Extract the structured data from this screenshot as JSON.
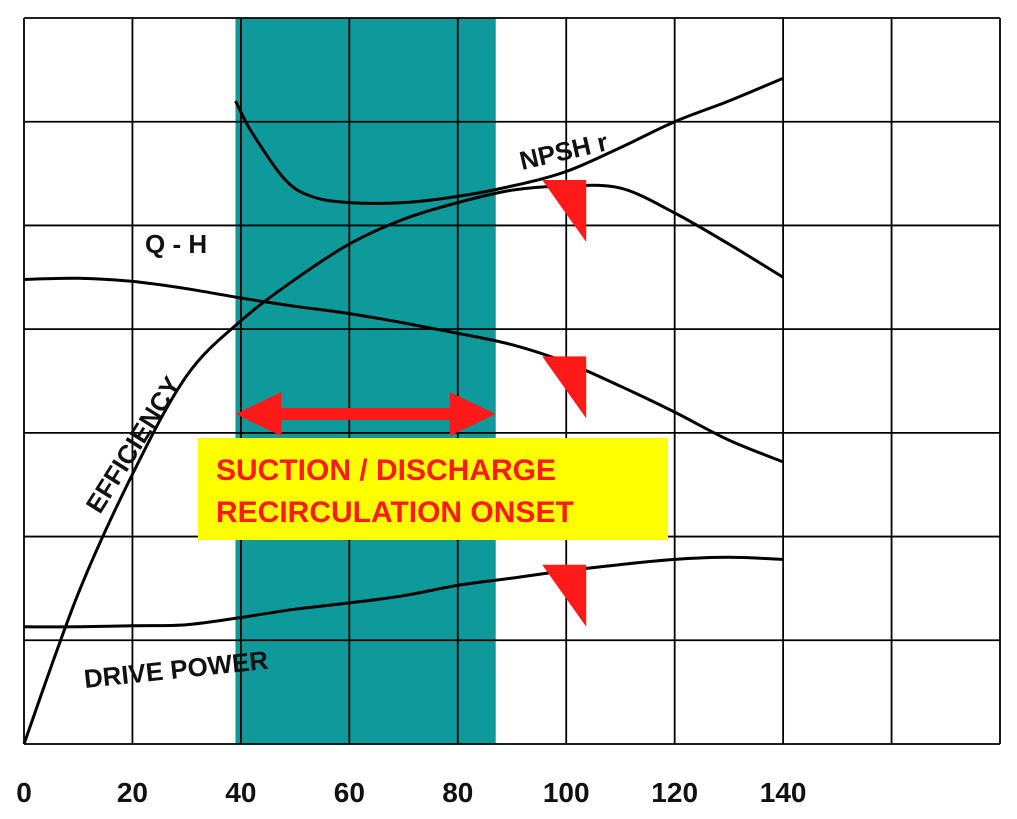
{
  "chart_data": {
    "type": "line",
    "title": "",
    "xlabel": "",
    "ylabel": "",
    "xlim": [
      0,
      180
    ],
    "ylim": [
      0,
      7
    ],
    "x_ticks": [
      "0",
      "20",
      "40",
      "60",
      "80",
      "100",
      "120",
      "140"
    ],
    "x_tick_values": [
      0,
      20,
      40,
      60,
      80,
      100,
      120,
      140
    ],
    "grid": true,
    "shaded_region": {
      "x_range": [
        39,
        87
      ],
      "color": "#0e9a9a"
    },
    "series": [
      {
        "name": "NPSH r",
        "color": "#000000",
        "points": [
          [
            39,
            6.2
          ],
          [
            42,
            5.9
          ],
          [
            48,
            5.45
          ],
          [
            53,
            5.28
          ],
          [
            60,
            5.22
          ],
          [
            70,
            5.22
          ],
          [
            80,
            5.28
          ],
          [
            90,
            5.38
          ],
          [
            100,
            5.52
          ],
          [
            110,
            5.75
          ],
          [
            120,
            6.0
          ],
          [
            130,
            6.2
          ],
          [
            140,
            6.42
          ]
        ]
      },
      {
        "name": "Q - H",
        "color": "#000000",
        "points": [
          [
            0,
            4.48
          ],
          [
            10,
            4.49
          ],
          [
            20,
            4.46
          ],
          [
            30,
            4.39
          ],
          [
            40,
            4.3
          ],
          [
            50,
            4.22
          ],
          [
            60,
            4.15
          ],
          [
            70,
            4.06
          ],
          [
            80,
            3.96
          ],
          [
            90,
            3.85
          ],
          [
            100,
            3.68
          ],
          [
            110,
            3.45
          ],
          [
            120,
            3.2
          ],
          [
            130,
            2.93
          ],
          [
            140,
            2.72
          ]
        ]
      },
      {
        "name": "EFFICIENCY",
        "color": "#000000",
        "points": [
          [
            0,
            0.0
          ],
          [
            10,
            1.45
          ],
          [
            20,
            2.6
          ],
          [
            30,
            3.55
          ],
          [
            40,
            4.08
          ],
          [
            50,
            4.48
          ],
          [
            60,
            4.82
          ],
          [
            70,
            5.06
          ],
          [
            80,
            5.22
          ],
          [
            90,
            5.34
          ],
          [
            100,
            5.38
          ],
          [
            110,
            5.36
          ],
          [
            120,
            5.12
          ],
          [
            130,
            4.82
          ],
          [
            140,
            4.5
          ]
        ]
      },
      {
        "name": "DRIVE POWER",
        "color": "#000000",
        "points": [
          [
            0,
            1.13
          ],
          [
            10,
            1.13
          ],
          [
            20,
            1.14
          ],
          [
            30,
            1.15
          ],
          [
            40,
            1.22
          ],
          [
            50,
            1.3
          ],
          [
            60,
            1.36
          ],
          [
            70,
            1.43
          ],
          [
            80,
            1.53
          ],
          [
            90,
            1.6
          ],
          [
            100,
            1.67
          ],
          [
            110,
            1.73
          ],
          [
            120,
            1.78
          ],
          [
            130,
            1.8
          ],
          [
            140,
            1.78
          ]
        ]
      }
    ],
    "curve_labels": {
      "npsh": "NPSH r",
      "qh": "Q - H",
      "efficiency": "EFFICIENCY",
      "power": "DRIVE POWER"
    },
    "annotation": {
      "line1": "SUCTION / DISCHARGE",
      "line2": "RECIRCULATION ONSET",
      "box_color": "#ffff00",
      "text_color": "#ff1a1a",
      "arrow_color": "#ff1a1a",
      "arrow_x_range": [
        39,
        87
      ]
    },
    "markers": {
      "color": "#ff1a1a",
      "x": 100,
      "curves": [
        "EFFICIENCY",
        "Q - H",
        "DRIVE POWER"
      ]
    }
  }
}
